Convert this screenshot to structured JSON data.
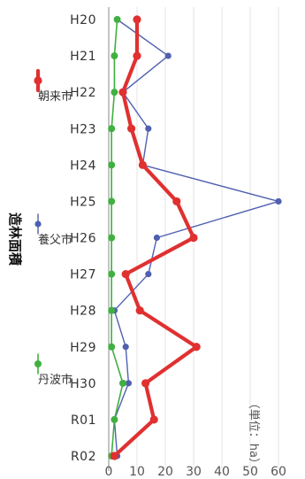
{
  "chart_data": {
    "type": "line",
    "title": "造林面積",
    "unit_label": "（単位：ha）",
    "x": [
      "H20",
      "H21",
      "H22",
      "H23",
      "H24",
      "H25",
      "H26",
      "H27",
      "H28",
      "H29",
      "H30",
      "R01",
      "R02"
    ],
    "ylim": [
      0,
      60
    ],
    "yticks": [
      0,
      10,
      20,
      30,
      40,
      50,
      60
    ],
    "legend_position": "bottom",
    "series": [
      {
        "name": "朝来市",
        "color": "#e03030",
        "values": [
          10,
          10,
          5,
          8,
          12,
          24,
          30,
          6,
          11,
          31,
          13,
          16,
          2
        ]
      },
      {
        "name": "養父市",
        "color": "#5060b0",
        "values": [
          3,
          21,
          5,
          14,
          12,
          60,
          17,
          14,
          2,
          6,
          7,
          2,
          3
        ]
      },
      {
        "name": "丹波市",
        "color": "#40b040",
        "values": [
          3,
          2,
          2,
          1,
          1,
          1,
          1,
          1,
          1,
          1,
          5,
          2,
          1
        ]
      }
    ]
  }
}
